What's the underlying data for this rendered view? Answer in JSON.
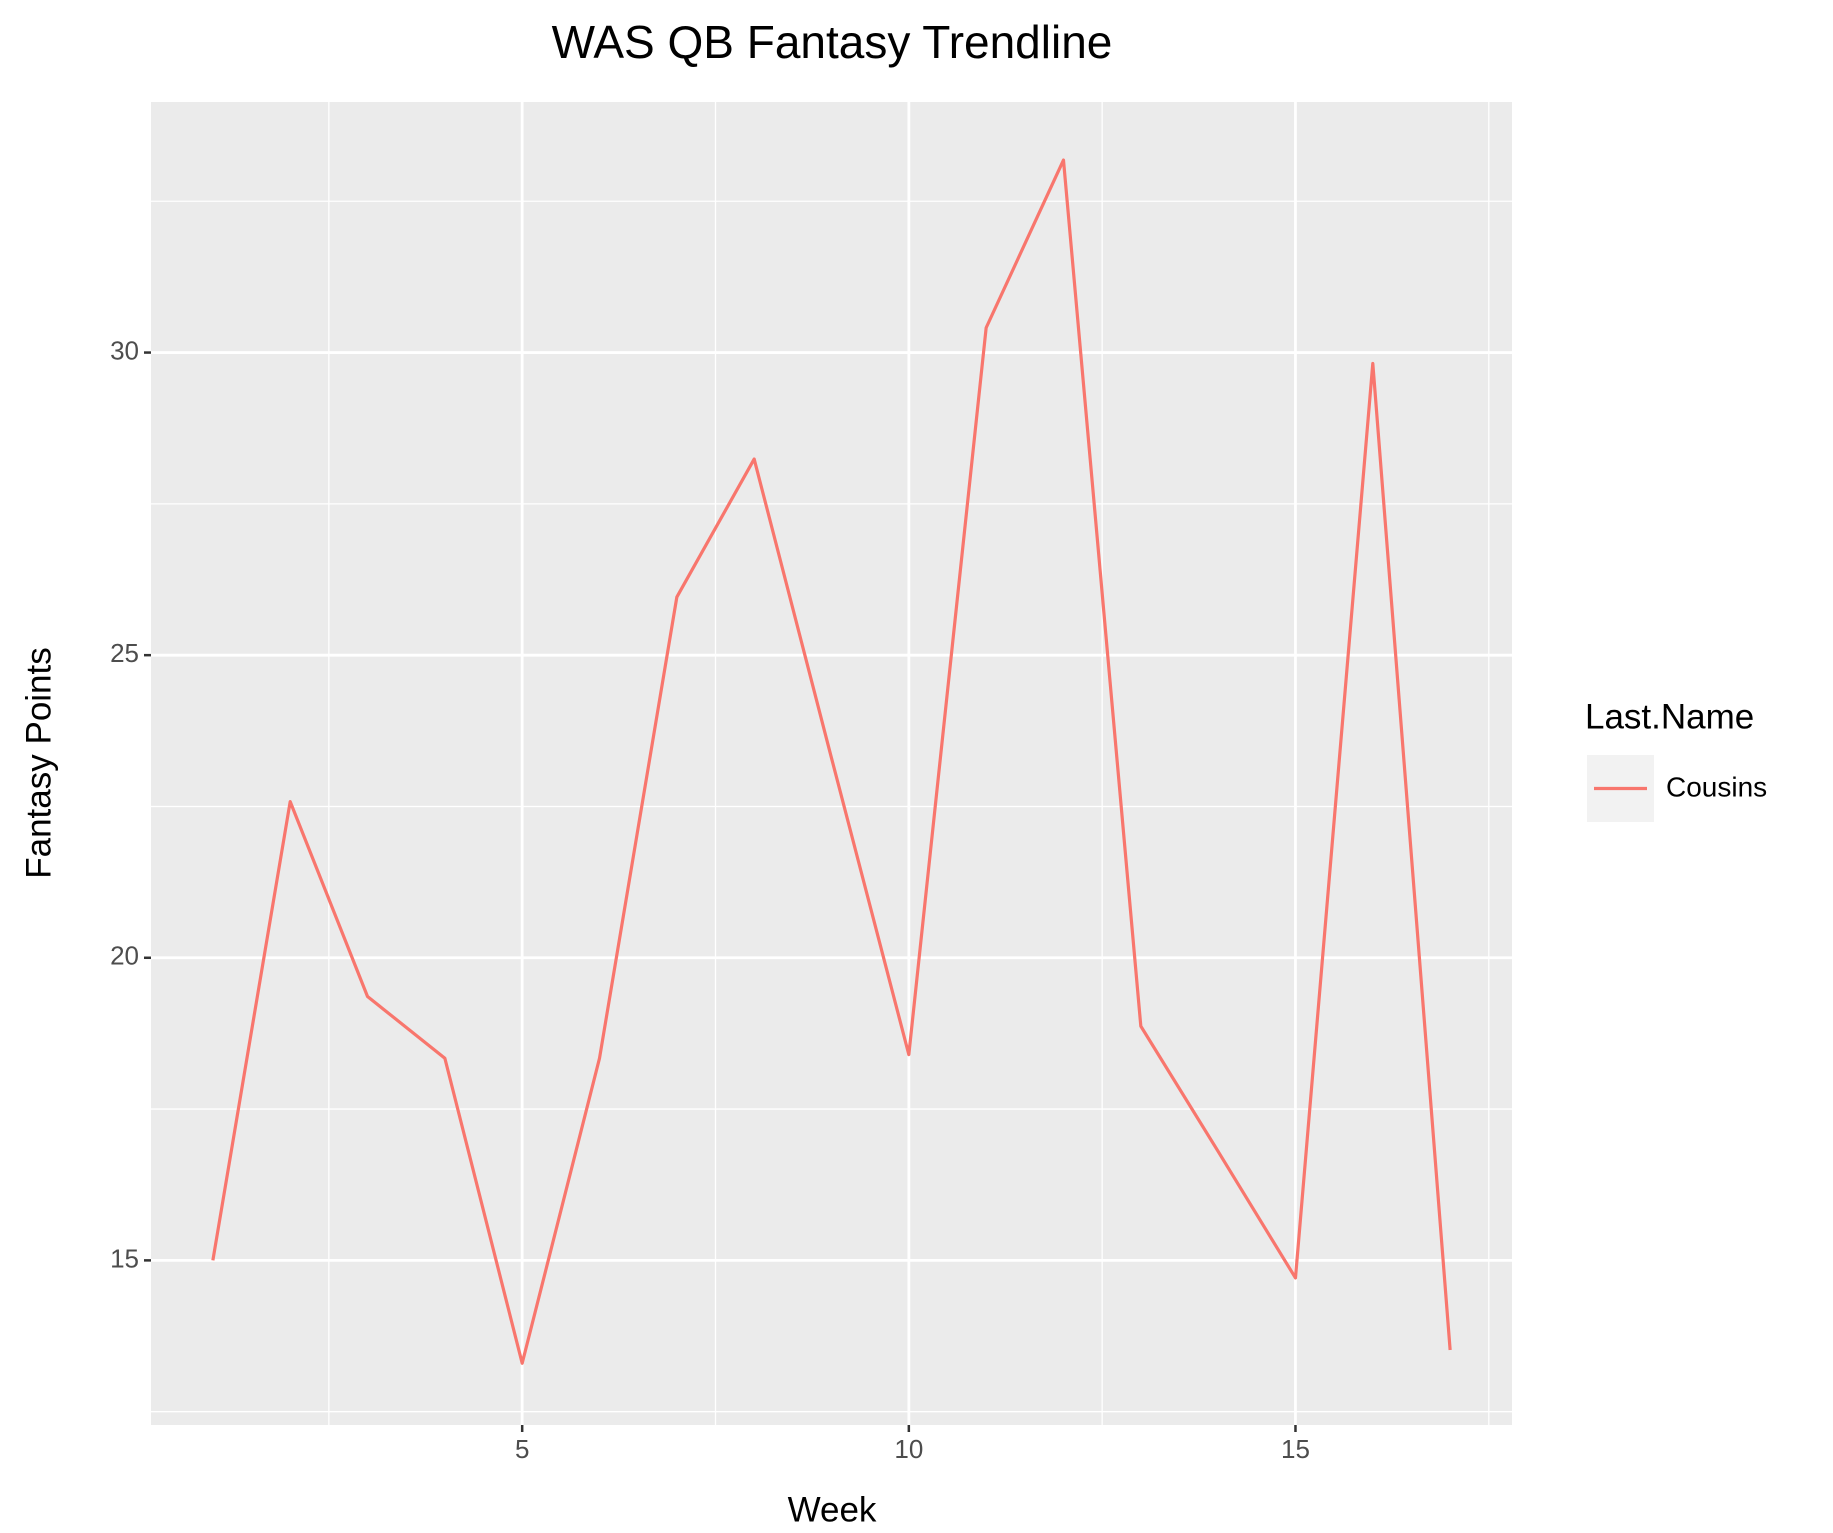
{
  "chart_data": {
    "type": "line",
    "title": "WAS QB Fantasy Trendline",
    "x_label": "Week",
    "y_label": "Fantasy Points",
    "legend_title": "Last.Name",
    "legend_position": "right",
    "grid": true,
    "x": [
      1,
      2,
      3,
      4,
      5,
      6,
      7,
      8,
      9,
      10,
      11,
      12,
      13,
      14,
      15,
      16,
      17
    ],
    "series": [
      {
        "name": "Cousins",
        "color": "#f8766d",
        "values": [
          15.0,
          22.58,
          19.36,
          18.34,
          13.3,
          18.34,
          25.96,
          28.24,
          23.3,
          18.4,
          30.41,
          33.18,
          18.87,
          16.8,
          14.71,
          29.82,
          13.52
        ]
      }
    ],
    "xlim": [
      0.2,
      17.8
    ],
    "xticks": [
      5,
      10,
      15
    ],
    "xminor_ticks": [
      2.5,
      7.5,
      12.5,
      17.5
    ],
    "ylim": [
      12.28,
      34.14
    ],
    "yticks": [
      15,
      20,
      25,
      30
    ],
    "yminor_ticks": [
      12.5,
      17.5,
      22.5,
      27.5,
      32.5
    ]
  }
}
